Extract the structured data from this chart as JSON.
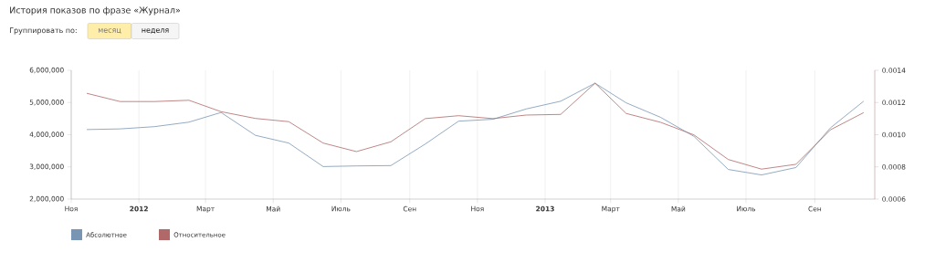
{
  "chart_data": {
    "type": "line",
    "title": "История показов по фразе «Журнал»",
    "annotations": [
      "Группировать по:",
      "месяц",
      "неделя"
    ],
    "x": [
      "2011-11-15",
      "2011-12-15",
      "2012-01-15",
      "2012-02-15",
      "2012-03-15",
      "2012-04-15",
      "2012-05-15",
      "2012-06-15",
      "2012-07-15",
      "2012-08-15",
      "2012-09-15",
      "2012-10-15",
      "2012-11-15",
      "2012-12-15",
      "2013-01-15",
      "2013-02-15",
      "2013-03-15",
      "2013-04-15",
      "2013-05-15",
      "2013-06-15",
      "2013-07-15",
      "2013-08-15",
      "2013-09-15",
      "2013-10-15"
    ],
    "series": [
      {
        "name": "Абсолютное",
        "color": "#7896b4",
        "values": [
          4160000,
          4180000,
          4250000,
          4390000,
          4690000,
          3980000,
          3740000,
          3010000,
          3030000,
          3040000,
          3710000,
          4420000,
          4480000,
          4800000,
          5040000,
          5600000,
          4990000,
          4540000,
          3950000,
          2920000,
          2750000,
          2980000,
          4210000,
          5040000
        ]
      },
      {
        "name": "Относительное",
        "color": "#b06868",
        "axis": "y2",
        "values": [
          0.001257,
          0.001206,
          0.001206,
          0.001214,
          0.001143,
          0.001101,
          0.001081,
          0.000948,
          0.000895,
          0.000956,
          0.0011,
          0.001118,
          0.0011,
          0.001122,
          0.001126,
          0.00132,
          0.001132,
          0.001077,
          0.000999,
          0.000846,
          0.000786,
          0.000816,
          0.00103,
          0.001137
        ]
      }
    ],
    "xlim": [
      "2011-11-01",
      "2013-10-25"
    ],
    "xticks": [
      {
        "value": "2011-11-01",
        "label": "Ноя"
      },
      {
        "value": "2012-01-01",
        "label": "2012"
      },
      {
        "value": "2012-03-01",
        "label": "Март"
      },
      {
        "value": "2012-05-01",
        "label": "Май"
      },
      {
        "value": "2012-07-01",
        "label": "Июль"
      },
      {
        "value": "2012-09-01",
        "label": "Сен"
      },
      {
        "value": "2012-11-01",
        "label": "Ноя"
      },
      {
        "value": "2013-01-01",
        "label": "2013"
      },
      {
        "value": "2013-03-01",
        "label": "Март"
      },
      {
        "value": "2013-05-01",
        "label": "Май"
      },
      {
        "value": "2013-07-01",
        "label": "Июль"
      },
      {
        "value": "2013-09-01",
        "label": "Сен"
      }
    ],
    "ylim": [
      2000000,
      6000000
    ],
    "yticks": [
      {
        "value": 2000000,
        "label": "2,000,000"
      },
      {
        "value": 3000000,
        "label": "3,000,000"
      },
      {
        "value": 4000000,
        "label": "4,000,000"
      },
      {
        "value": 5000000,
        "label": "5,000,000"
      },
      {
        "value": 6000000,
        "label": "6,000,000"
      }
    ],
    "y2lim": [
      0.0006,
      0.0014
    ],
    "y2ticks": [
      {
        "value": 0.0006,
        "label": "0.0006"
      },
      {
        "value": 0.0008,
        "label": "0.0008"
      },
      {
        "value": 0.001,
        "label": "0.0010"
      },
      {
        "value": 0.0012,
        "label": "0.0012"
      },
      {
        "value": 0.0014,
        "label": "0.0014"
      }
    ],
    "grid": "x",
    "legend": "bottom left"
  }
}
